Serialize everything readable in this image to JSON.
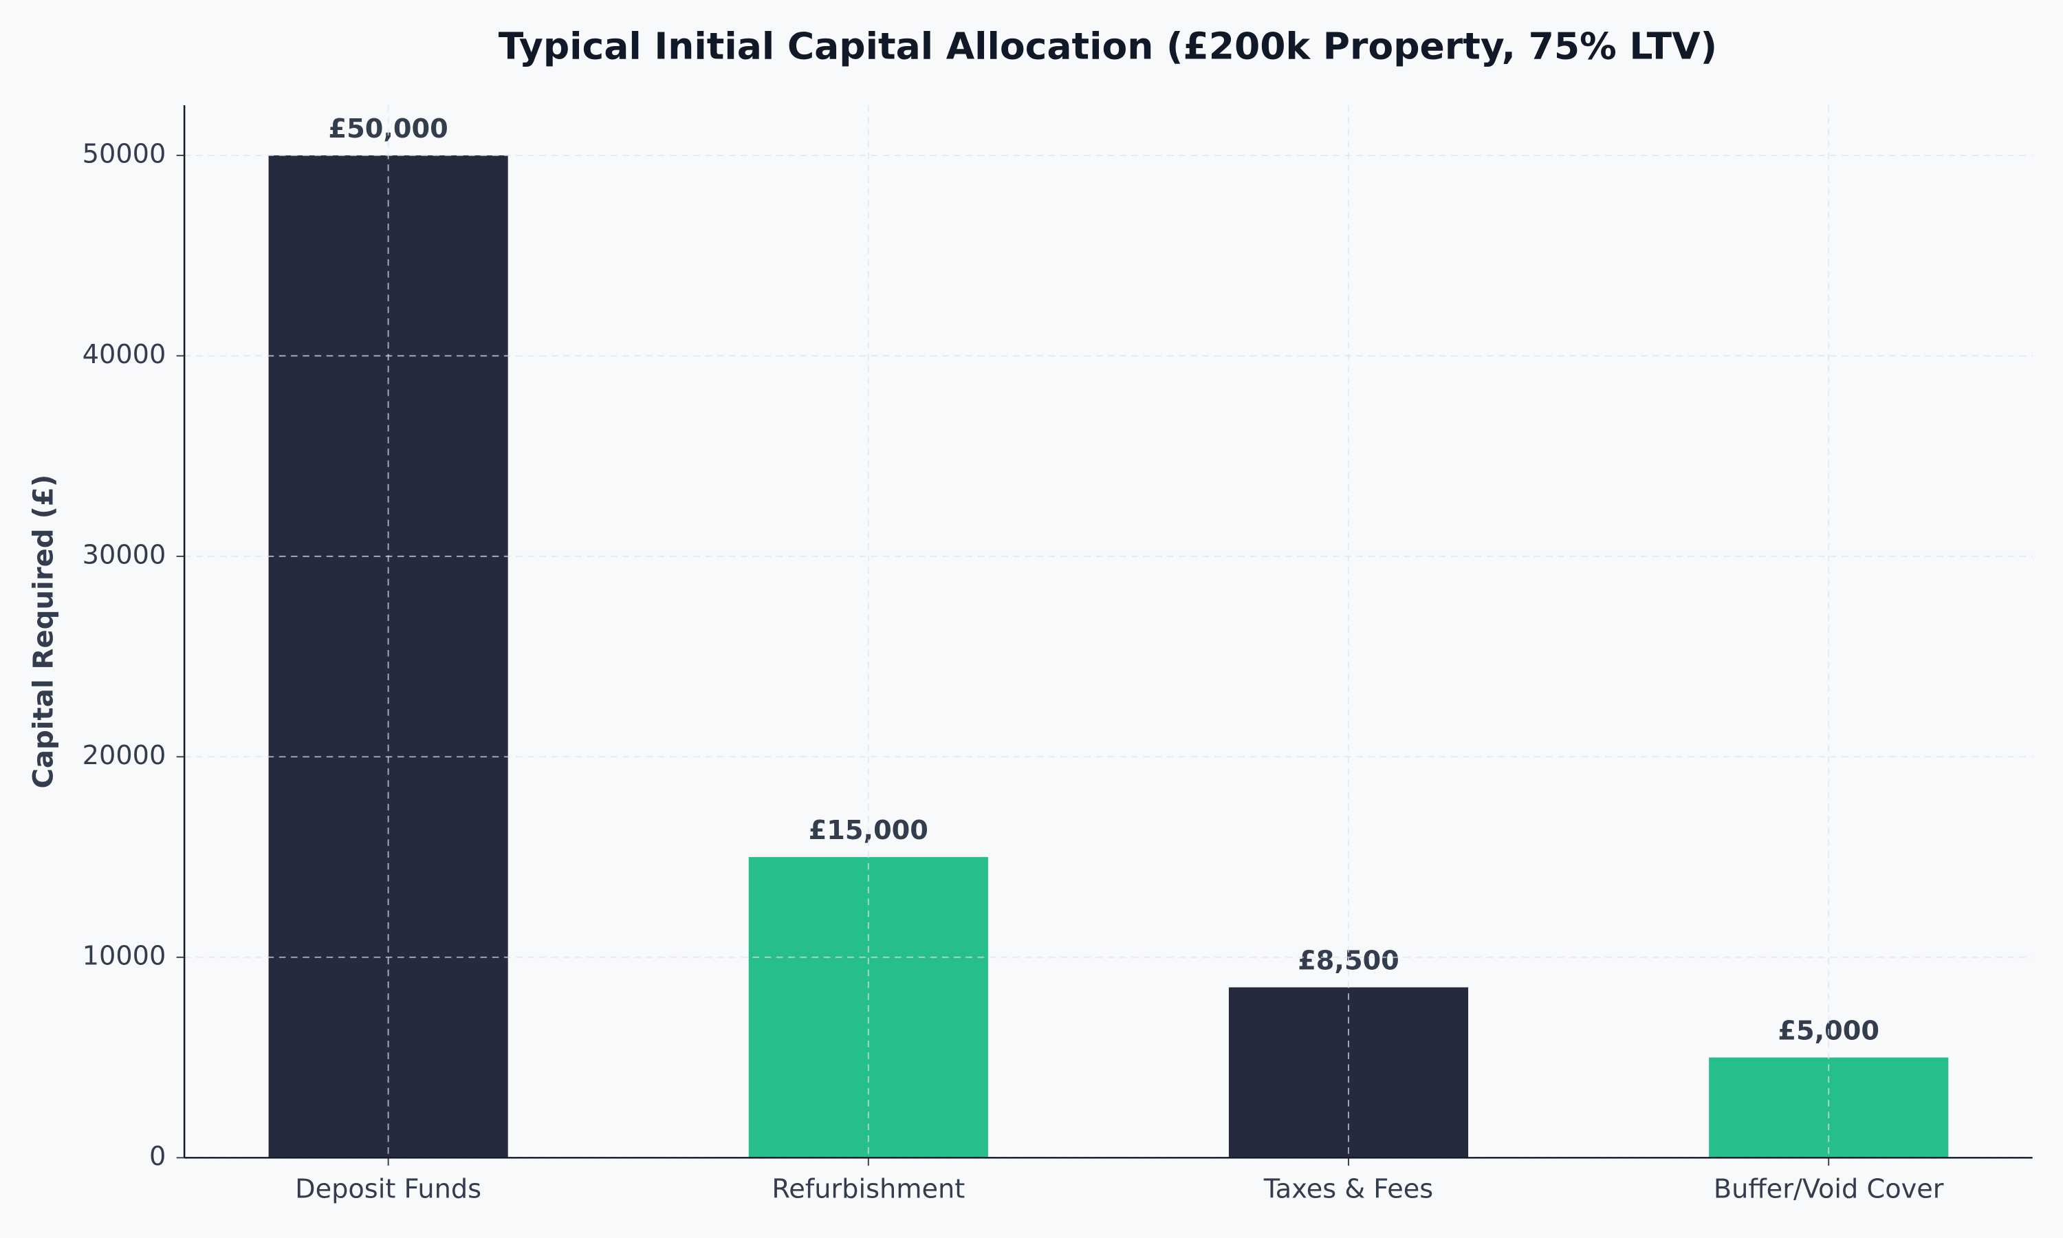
{
  "chart_data": {
    "type": "bar",
    "title": "Typical Initial Capital Allocation (£200k Property, 75% LTV)",
    "y_label": "Capital Required (£)",
    "categories": [
      "Deposit Funds",
      "Refurbishment",
      "Taxes & Fees",
      "Buffer/Void Cover"
    ],
    "values": [
      50000,
      15000,
      8500,
      5000
    ],
    "value_labels": [
      "£50,000",
      "£15,000",
      "£8,500",
      "£5,000"
    ],
    "colors": [
      "#252b3d",
      "#26bf8c",
      "#252b3d",
      "#26bf8c"
    ],
    "ylim": [
      0,
      52500
    ],
    "yticks": [
      0,
      10000,
      20000,
      30000,
      40000,
      50000
    ],
    "grid": true
  }
}
